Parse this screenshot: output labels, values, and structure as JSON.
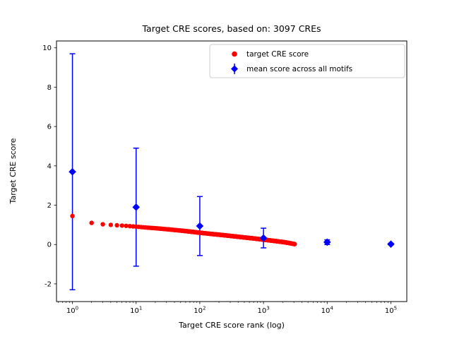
{
  "chart_data": {
    "type": "scatter",
    "title": "Target CRE scores, based on: 3097 CREs",
    "xlabel": "Target CRE score rank (log)",
    "ylabel": "Target CRE score",
    "x_scale": "log",
    "xlim_log10": [
      -0.25,
      5.25
    ],
    "ylim": [
      -2.9,
      10.35
    ],
    "x_ticks": [
      1,
      10,
      100,
      1000,
      10000,
      100000
    ],
    "y_ticks": [
      -2,
      0,
      2,
      4,
      6,
      8,
      10
    ],
    "grid": false,
    "colors": {
      "target": "#ff0000",
      "mean": "#0000ff",
      "legend_border": "#cccccc"
    },
    "series": [
      {
        "name": "target CRE score",
        "color": "#ff0000",
        "marker": "circle",
        "n_points": 3097,
        "anchors": [
          [
            1,
            1.45
          ],
          [
            2,
            1.1
          ],
          [
            3,
            1.03
          ],
          [
            4,
            1.0
          ],
          [
            5,
            0.98
          ],
          [
            7,
            0.95
          ],
          [
            10,
            0.91
          ],
          [
            15,
            0.86
          ],
          [
            20,
            0.83
          ],
          [
            30,
            0.78
          ],
          [
            50,
            0.71
          ],
          [
            70,
            0.66
          ],
          [
            100,
            0.6
          ],
          [
            150,
            0.54
          ],
          [
            200,
            0.5
          ],
          [
            300,
            0.44
          ],
          [
            500,
            0.36
          ],
          [
            700,
            0.31
          ],
          [
            1000,
            0.25
          ],
          [
            1500,
            0.18
          ],
          [
            2000,
            0.13
          ],
          [
            2500,
            0.08
          ],
          [
            3097,
            0.02
          ]
        ]
      },
      {
        "name": "mean score across all motifs",
        "color": "#0000ff",
        "marker": "diamond",
        "x": [
          1,
          10,
          100,
          1000,
          10000,
          100000
        ],
        "y": [
          3.7,
          1.9,
          0.94,
          0.33,
          0.12,
          0.02
        ],
        "yerr": [
          6.0,
          3.0,
          1.5,
          0.5,
          0.12,
          0.04
        ]
      }
    ],
    "legend": {
      "position": "upper center-right",
      "entries": [
        "target CRE score",
        "mean score across all motifs"
      ]
    }
  }
}
